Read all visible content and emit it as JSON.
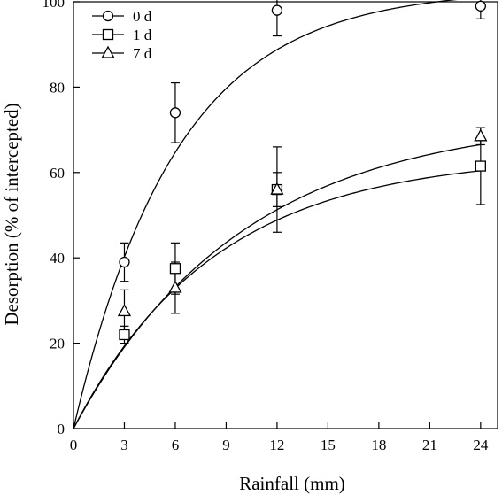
{
  "chart_data": {
    "type": "scatter",
    "title": "",
    "xlabel": "Rainfall (mm)",
    "ylabel": "Desorption (% of intercepted)",
    "xlim": [
      0,
      25
    ],
    "ylim": [
      0,
      100
    ],
    "x_ticks": [
      0,
      3,
      6,
      9,
      12,
      15,
      18,
      21,
      24
    ],
    "y_ticks": [
      0,
      20,
      40,
      60,
      80,
      100
    ],
    "grid": false,
    "legend_position": "top-left",
    "fit_curves": "exponential rise to maximum",
    "series": [
      {
        "name": "0 d",
        "marker": "circle",
        "x": [
          3,
          6,
          12,
          24
        ],
        "y": [
          39,
          74,
          98,
          99
        ],
        "error": [
          4.5,
          7,
          6,
          3
        ],
        "fit": {
          "a": 103,
          "k": 0.165
        }
      },
      {
        "name": "1 d",
        "marker": "square",
        "x": [
          3,
          6,
          12,
          24
        ],
        "y": [
          22,
          37.5,
          56,
          61.5
        ],
        "error": [
          2,
          6,
          10,
          9
        ],
        "fit": {
          "a": 64,
          "k": 0.12
        }
      },
      {
        "name": "7 d",
        "marker": "triangle",
        "x": [
          3,
          6,
          12,
          24
        ],
        "y": [
          27.5,
          33,
          56,
          68.5
        ],
        "error": [
          5,
          6,
          4,
          2
        ],
        "fit": {
          "a": 73,
          "k": 0.101
        }
      }
    ]
  }
}
